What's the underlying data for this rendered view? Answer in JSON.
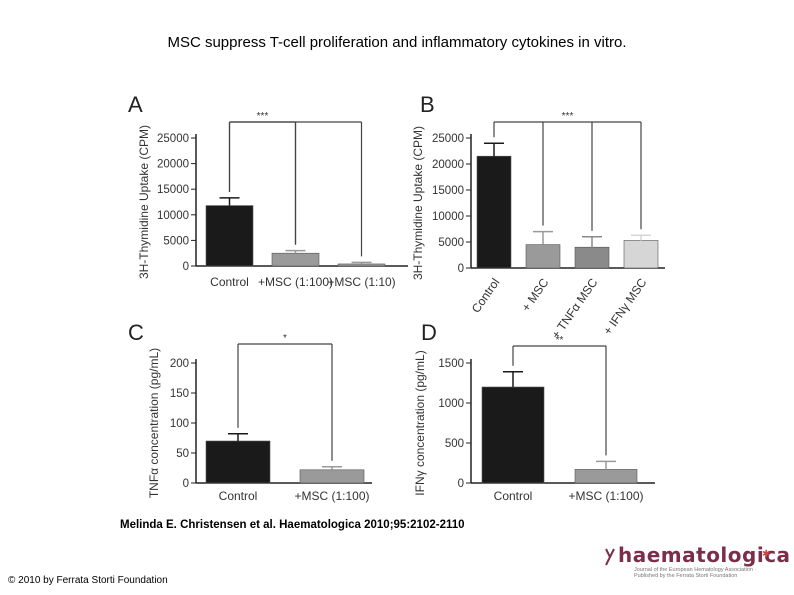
{
  "page": {
    "title": "MSC suppress T-cell proliferation and inflammatory cytokines in vitro.",
    "citation": "Melinda E. Christensen et al. Haematologica 2010;95:2102-2110",
    "copyright": "© 2010 by Ferrata Storti Foundation",
    "logo_text": "haematologica",
    "logo_tagline": "Journal of the European Hematology Association · Published by the Ferrata Storti Foundation"
  },
  "colors": {
    "black_bar": "#1a1a1a",
    "grey_bar": "#9a9a9a",
    "mid_grey_bar": "#8a8a8a",
    "light_bar": "#d6d6d6",
    "axis": "#222222"
  },
  "chart_data": [
    {
      "panel": "A",
      "type": "bar",
      "ylabel": "3H-Thymidine Uptake (CPM)",
      "yticks": [
        "0",
        "5000",
        "10000",
        "15000",
        "20000",
        "25000"
      ],
      "ylim": [
        0,
        25000
      ],
      "categories": [
        "Control",
        "+MSC (1:100)",
        "+MSC (1:10)"
      ],
      "values": [
        11800,
        2500,
        400
      ],
      "errors": [
        1500,
        500,
        300
      ],
      "bar_colors": [
        "#1a1a1a",
        "#9a9a9a",
        "#9a9a9a"
      ],
      "significance": [
        {
          "from": 0,
          "to": 1,
          "label": "***"
        },
        {
          "from": 0,
          "to": 2,
          "label": ""
        }
      ]
    },
    {
      "panel": "B",
      "type": "bar",
      "ylabel": "3H-Thymidine Uptake (CPM)",
      "yticks": [
        "0",
        "5000",
        "10000",
        "15000",
        "20000",
        "25000"
      ],
      "ylim": [
        0,
        25000
      ],
      "categories": [
        "Control",
        "+ MSC",
        "+ TNFα MSC",
        "+ IFNγ MSC"
      ],
      "values": [
        21500,
        4500,
        4000,
        5300
      ],
      "errors": [
        2500,
        2500,
        2000,
        1000
      ],
      "bar_colors": [
        "#1a1a1a",
        "#9a9a9a",
        "#8a8a8a",
        "#d6d6d6"
      ],
      "significance": [
        {
          "from": 0,
          "to": 3,
          "label": "***"
        }
      ]
    },
    {
      "panel": "C",
      "type": "bar",
      "ylabel": "TNFα concentration (pg/mL)",
      "yticks": [
        "0",
        "50",
        "100",
        "150",
        "200"
      ],
      "ylim": [
        0,
        200
      ],
      "categories": [
        "Control",
        "+MSC (1:100)"
      ],
      "values": [
        70,
        22
      ],
      "errors": [
        12,
        5
      ],
      "bar_colors": [
        "#1a1a1a",
        "#9a9a9a"
      ],
      "significance": [
        {
          "from": 0,
          "to": 1,
          "label": "*"
        }
      ]
    },
    {
      "panel": "D",
      "type": "bar",
      "ylabel": "IFNγ concentration (pg/mL)",
      "yticks": [
        "0",
        "500",
        "1000",
        "1500"
      ],
      "ylim": [
        0,
        1500
      ],
      "categories": [
        "Control",
        "+MSC (1:100)"
      ],
      "values": [
        1200,
        170
      ],
      "errors": [
        190,
        100
      ],
      "bar_colors": [
        "#1a1a1a",
        "#9a9a9a"
      ],
      "significance": [
        {
          "from": 0,
          "to": 1,
          "label": "**"
        }
      ]
    }
  ]
}
